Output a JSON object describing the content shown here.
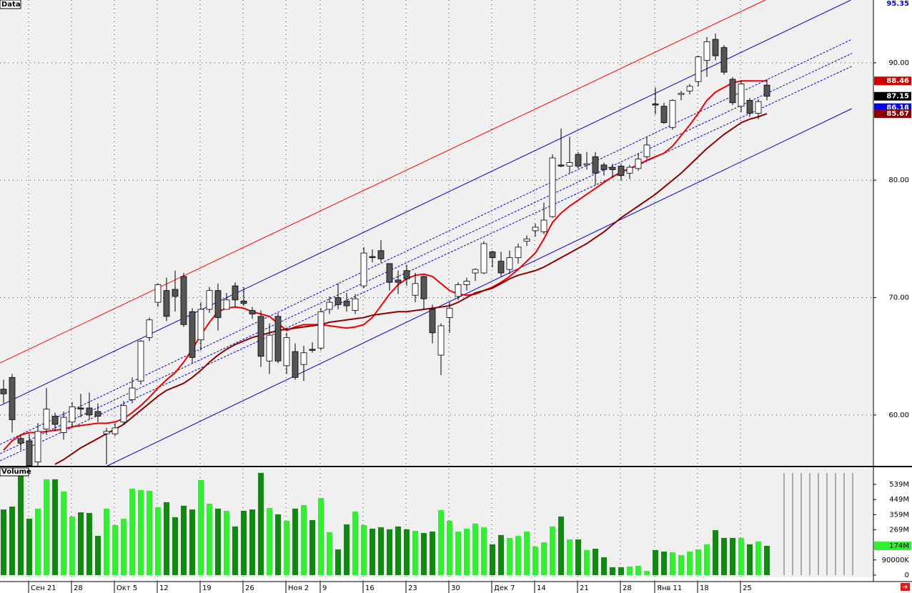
{
  "chart_data": {
    "type": "candlestick",
    "title": "Data",
    "categories": [
      null,
      null,
      null,
      "Сен 21",
      null,
      null,
      null,
      null,
      "28",
      null,
      null,
      null,
      null,
      "Окт 5",
      null,
      null,
      null,
      null,
      "12",
      null,
      null,
      null,
      null,
      "19",
      null,
      null,
      null,
      null,
      "26",
      null,
      null,
      null,
      null,
      "Ноя 2",
      null,
      null,
      null,
      "9",
      null,
      null,
      null,
      null,
      "16",
      null,
      null,
      null,
      null,
      "23",
      null,
      null,
      null,
      null,
      "30",
      null,
      null,
      null,
      null,
      "Дек 7",
      null,
      null,
      null,
      null,
      "14",
      null,
      null,
      null,
      null,
      "21",
      null,
      null,
      null,
      null,
      "28",
      null,
      null,
      null,
      "Янв 11",
      null,
      null,
      null,
      null,
      "18",
      null,
      null,
      null,
      null,
      "25",
      null,
      null,
      null
    ],
    "open": [
      62.2,
      63.2,
      58.0,
      57.8,
      56.0,
      58.8,
      59.9,
      58.5,
      59.4,
      60.6,
      60.6,
      60.3,
      58.4,
      58.4,
      59.4,
      61.3,
      62.9,
      66.6,
      69.6,
      70.6,
      70.7,
      71.8,
      68.8,
      66.4,
      69.0,
      70.6,
      69.0,
      71.0,
      69.7,
      68.9,
      68.4,
      64.6,
      68.4,
      64.2,
      65.4,
      64.3,
      65.6,
      65.7,
      69.0,
      70.0,
      69.7,
      68.9,
      71.0,
      73.5,
      74.0,
      72.9,
      71.5,
      72.3,
      70.2,
      71.8,
      69.0,
      65.1,
      68.3,
      70.1,
      71.1,
      72.1,
      72.1,
      73.9,
      73.1,
      72.4,
      73.4,
      74.8,
      75.7,
      75.6,
      76.9,
      81.3,
      81.2,
      82.2,
      81.3,
      82.0,
      81.3,
      81.1,
      81.2,
      80.6,
      81.0,
      82.0,
      86.5,
      86.3,
      84.5,
      87.3,
      87.6,
      88.4,
      90.2,
      92.0,
      91.3,
      88.6,
      86.3,
      86.8,
      85.7,
      88.1
    ],
    "high": [
      63.0,
      63.5,
      58.3,
      58.4,
      59.3,
      62.3,
      60.2,
      60.3,
      61.1,
      61.8,
      61.9,
      61.0,
      58.9,
      59.3,
      61.2,
      63.2,
      66.4,
      68.3,
      71.2,
      71.7,
      72.3,
      72.1,
      69.1,
      69.6,
      70.9,
      71.2,
      70.4,
      71.3,
      70.9,
      69.2,
      68.9,
      67.8,
      68.7,
      67.0,
      66.1,
      65.9,
      66.2,
      69.1,
      70.1,
      71.2,
      70.4,
      70.3,
      74.3,
      74.1,
      74.9,
      72.9,
      72.3,
      72.8,
      72.1,
      71.9,
      69.4,
      67.8,
      69.6,
      71.3,
      71.7,
      72.5,
      74.8,
      74.0,
      73.9,
      74.0,
      74.6,
      75.3,
      76.3,
      78.1,
      82.2,
      84.4,
      83.7,
      82.4,
      82.4,
      82.4,
      81.5,
      81.4,
      81.4,
      81.3,
      82.3,
      83.7,
      87.9,
      86.6,
      86.9,
      87.6,
      88.2,
      90.6,
      92.2,
      92.5,
      91.5,
      88.8,
      88.5,
      87.0,
      86.9,
      88.6
    ],
    "low": [
      61.0,
      58.5,
      57.0,
      55.0,
      55.6,
      58.3,
      58.6,
      57.9,
      59.0,
      59.8,
      59.6,
      59.4,
      55.8,
      58.2,
      59.2,
      61.0,
      62.6,
      66.3,
      69.2,
      68.0,
      68.8,
      67.5,
      64.4,
      65.5,
      68.7,
      67.2,
      69.0,
      69.2,
      69.3,
      68.2,
      64.1,
      63.5,
      64.4,
      63.5,
      63.0,
      62.9,
      65.3,
      65.5,
      68.6,
      69.0,
      68.8,
      68.6,
      70.8,
      73.0,
      73.0,
      70.6,
      70.3,
      71.0,
      69.6,
      69.0,
      66.1,
      63.4,
      67.0,
      69.8,
      70.6,
      71.4,
      72.0,
      72.6,
      71.8,
      72.0,
      72.9,
      74.4,
      75.2,
      75.4,
      76.8,
      81.1,
      80.6,
      81.0,
      80.9,
      79.6,
      80.4,
      80.2,
      80.0,
      80.1,
      80.8,
      81.8,
      85.6,
      84.8,
      84.3,
      86.8,
      87.3,
      88.0,
      88.8,
      90.2,
      89.0,
      86.4,
      85.8,
      85.4,
      85.2,
      86.8
    ],
    "close": [
      61.8,
      59.6,
      57.6,
      55.7,
      58.6,
      60.5,
      59.2,
      59.8,
      60.7,
      60.5,
      60.0,
      59.9,
      58.6,
      58.9,
      60.8,
      62.3,
      66.3,
      68.1,
      71.1,
      68.4,
      70.1,
      67.7,
      64.9,
      69.0,
      70.6,
      68.3,
      69.8,
      69.8,
      69.5,
      68.6,
      65.0,
      66.8,
      64.6,
      66.6,
      63.2,
      65.3,
      65.5,
      68.8,
      69.6,
      69.4,
      69.3,
      69.9,
      73.8,
      73.4,
      73.3,
      71.3,
      71.3,
      71.6,
      71.2,
      69.9,
      67.0,
      67.6,
      69.1,
      71.1,
      71.4,
      72.4,
      74.6,
      73.4,
      72.1,
      73.4,
      74.3,
      75.0,
      76.0,
      76.6,
      81.9,
      81.2,
      81.5,
      81.2,
      81.4,
      80.6,
      80.9,
      80.9,
      80.4,
      81.1,
      81.8,
      83.0,
      86.4,
      84.9,
      86.8,
      87.4,
      88.0,
      90.5,
      91.8,
      90.6,
      89.2,
      86.6,
      88.2,
      85.7,
      86.7,
      87.15
    ],
    "up_color": "#ffffff",
    "down_color": "#555555",
    "ylim": [
      55.67,
      95.35
    ],
    "yticks": [
      {
        "value": 60,
        "label": "60.00"
      },
      {
        "value": 70,
        "label": "70.00"
      },
      {
        "value": 80,
        "label": "80.00"
      },
      {
        "value": 90,
        "label": "90.00"
      }
    ],
    "grid": true,
    "series": [
      {
        "color": "#ee0000",
        "values": [
          57.0,
          57.8,
          58.3,
          58.5,
          58.5,
          58.6,
          58.7,
          58.8,
          59.0,
          59.1,
          59.2,
          59.3,
          59.3,
          59.4,
          59.7,
          60.2,
          60.8,
          61.5,
          62.3,
          63.0,
          63.6,
          64.5,
          65.6,
          66.8,
          67.9,
          68.8,
          69.1,
          69.2,
          69.1,
          68.8,
          68.6,
          68.4,
          67.8,
          67.2,
          67.5,
          67.7,
          67.7,
          67.7,
          67.6,
          67.5,
          67.4,
          67.5,
          67.7,
          68.3,
          69.3,
          70.3,
          71.1,
          71.6,
          71.9,
          72.0,
          71.8,
          71.2,
          70.6,
          70.3,
          70.2,
          70.3,
          70.6,
          70.9,
          71.3,
          71.8,
          72.4,
          73.1,
          73.8,
          75.0,
          76.4,
          77.2,
          77.8,
          78.3,
          78.8,
          79.3,
          79.8,
          80.3,
          80.7,
          81.0,
          81.3,
          81.7,
          82.0,
          82.3,
          82.9,
          83.8,
          84.7,
          85.7,
          86.8,
          87.5,
          87.9,
          88.3,
          88.46,
          88.46,
          88.46,
          88.46
        ]
      },
      {
        "color": "#8b0000",
        "values": [
          null,
          null,
          null,
          null,
          null,
          null,
          55.8,
          56.2,
          56.7,
          57.2,
          57.6,
          58.0,
          58.4,
          58.8,
          59.2,
          59.8,
          60.4,
          61.0,
          61.6,
          62.1,
          62.4,
          62.7,
          63.2,
          63.8,
          64.5,
          65.1,
          65.6,
          66.0,
          66.3,
          66.6,
          66.8,
          67.0,
          67.2,
          67.3,
          67.4,
          67.5,
          67.6,
          67.7,
          67.9,
          68.0,
          68.1,
          68.2,
          68.3,
          68.5,
          68.6,
          68.7,
          68.8,
          68.8,
          68.9,
          69.0,
          69.1,
          69.2,
          69.3,
          69.6,
          70.0,
          70.4,
          70.6,
          70.8,
          71.2,
          71.6,
          71.9,
          72.1,
          72.3,
          72.6,
          73.0,
          73.4,
          73.8,
          74.2,
          74.6,
          75.1,
          75.6,
          76.2,
          76.8,
          77.3,
          77.8,
          78.3,
          78.8,
          79.4,
          80.0,
          80.6,
          81.3,
          82.0,
          82.7,
          83.3,
          83.9,
          84.4,
          84.9,
          85.2,
          85.4,
          85.67
        ]
      }
    ],
    "channel_lines": [
      {
        "color": "#ff0000",
        "dashed": false,
        "x": [
          -0.4,
          88.8
        ],
        "values": [
          64.44,
          95.35
        ]
      },
      {
        "color": "#0000cc",
        "dashed": false,
        "x": [
          -0.4,
          98.8
        ],
        "values": [
          60.8,
          95.35
        ]
      },
      {
        "color": "#0000cc",
        "dashed": false,
        "x": [
          12.1,
          98.9
        ],
        "values": [
          55.67,
          86.1
        ]
      },
      {
        "color": "#0000cc",
        "dashed": true,
        "x": [
          -0.4,
          98.9
        ],
        "values": [
          57.5,
          92.0
        ]
      },
      {
        "color": "#0000cc",
        "dashed": true,
        "x": [
          -0.4,
          98.9
        ],
        "values": [
          56.7,
          90.8
        ]
      },
      {
        "color": "#0000cc",
        "dashed": true,
        "x": [
          -0.4,
          98.9
        ],
        "values": [
          56.1,
          89.7
        ]
      }
    ],
    "price_markers": [
      {
        "value": 95.35,
        "color": "#0000ff",
        "filled": false
      },
      {
        "value": 88.46,
        "color": "#cc0000",
        "filled": true
      },
      {
        "value": 87.15,
        "color": "#000000",
        "filled": true
      },
      {
        "value": 86.18,
        "color": "#0000ee",
        "filled": true
      },
      {
        "value": 85.67,
        "color": "#880000",
        "filled": true
      }
    ],
    "volume": {
      "title": "Volume",
      "values": [
        390,
        407,
        607,
        335,
        395,
        569,
        569,
        497,
        348,
        373,
        369,
        233,
        395,
        297,
        335,
        513,
        505,
        501,
        403,
        433,
        344,
        412,
        390,
        565,
        424,
        395,
        382,
        289,
        382,
        390,
        607,
        399,
        361,
        323,
        395,
        416,
        327,
        458,
        255,
        153,
        301,
        378,
        297,
        276,
        284,
        272,
        289,
        272,
        263,
        250,
        259,
        386,
        323,
        259,
        276,
        306,
        284,
        183,
        238,
        221,
        233,
        259,
        170,
        195,
        289,
        348,
        212,
        212,
        149,
        157,
        106,
        47,
        47,
        51,
        55,
        25,
        149,
        140,
        136,
        119,
        140,
        153,
        183,
        267,
        221,
        221,
        221,
        183,
        200,
        174
      ],
      "up_color": "#33ee33",
      "down_color": "#118811",
      "ylim": [
        0,
        632
      ],
      "yticks": [
        0,
        {
          "value": 90,
          "label": "90000K"
        },
        {
          "value": 269,
          "label": "269M"
        },
        {
          "value": 359,
          "label": "359M"
        },
        {
          "value": 449,
          "label": "449M"
        },
        {
          "value": 539,
          "label": "539M"
        }
      ],
      "marker": {
        "value": 174,
        "label": "174M",
        "color": "#33ee33"
      }
    }
  }
}
